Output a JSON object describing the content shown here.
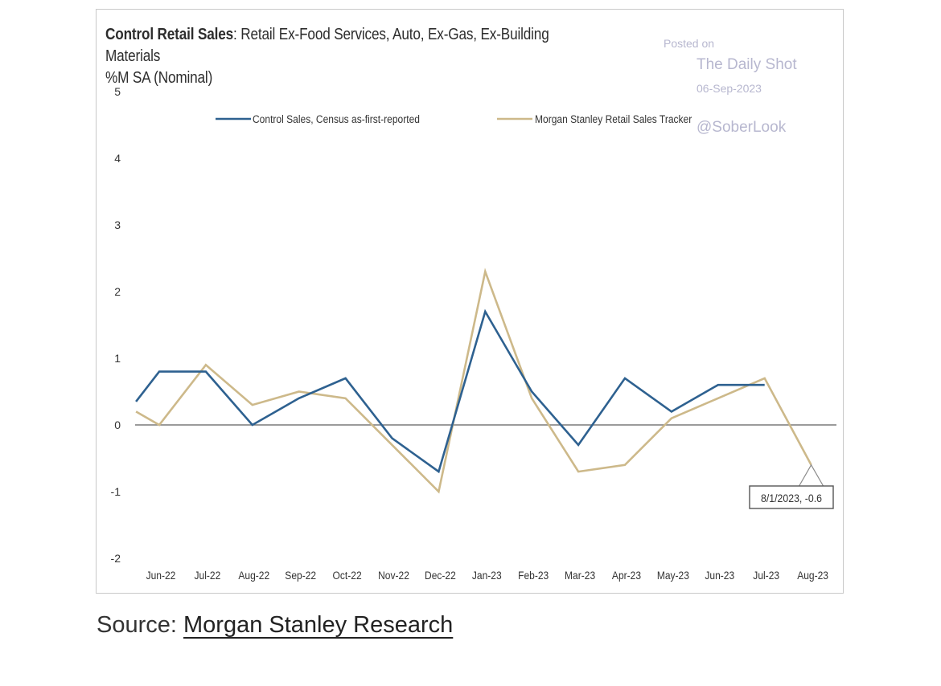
{
  "chart_data": {
    "type": "line",
    "title_bold": "Control Retail Sales",
    "title_rest": ": Retail Ex-Food Services, Auto, Ex-Gas, Ex-Building Materials",
    "subtitle": "%M SA (Nominal)",
    "xlabel": "",
    "ylabel": "",
    "ylim": [
      -2,
      5
    ],
    "yticks": [
      "-2",
      "-1",
      "0",
      "1",
      "2",
      "3",
      "4",
      "5"
    ],
    "categories": [
      "Jun-22",
      "Jul-22",
      "Aug-22",
      "Sep-22",
      "Oct-22",
      "Nov-22",
      "Dec-22",
      "Jan-23",
      "Feb-23",
      "Mar-23",
      "Apr-23",
      "May-23",
      "Jun-23",
      "Jul-23",
      "Aug-23"
    ],
    "series": [
      {
        "name": "Control Sales, Census as-first-reported",
        "color": "#2e6190",
        "x": [
          -0.5,
          0,
          1,
          2,
          3,
          4,
          5,
          6,
          7,
          8,
          9,
          10,
          11,
          12,
          13
        ],
        "values": [
          0.35,
          0.8,
          0.8,
          0.0,
          0.4,
          0.7,
          -0.2,
          -0.7,
          1.7,
          0.5,
          -0.3,
          0.7,
          0.2,
          0.6,
          0.6
        ]
      },
      {
        "name": "Morgan Stanley Retail Sales Tracker",
        "color": "#cdb98a",
        "x": [
          -0.5,
          0,
          1,
          2,
          3,
          4,
          5,
          6,
          7,
          8,
          9,
          10,
          11,
          12,
          13,
          14
        ],
        "values": [
          0.2,
          0.0,
          0.9,
          0.3,
          0.5,
          0.4,
          -0.3,
          -1.0,
          2.3,
          0.4,
          -0.7,
          -0.6,
          0.1,
          0.4,
          0.7,
          -0.6
        ]
      }
    ],
    "annotation": "8/1/2023, -0.6",
    "legend_position": "top"
  },
  "watermark": {
    "posted_on": "Posted on",
    "site": "The Daily Shot",
    "date": "06-Sep-2023",
    "handle": "@SoberLook"
  },
  "source": {
    "prefix": "Source: ",
    "link_text": "Morgan Stanley Research"
  }
}
